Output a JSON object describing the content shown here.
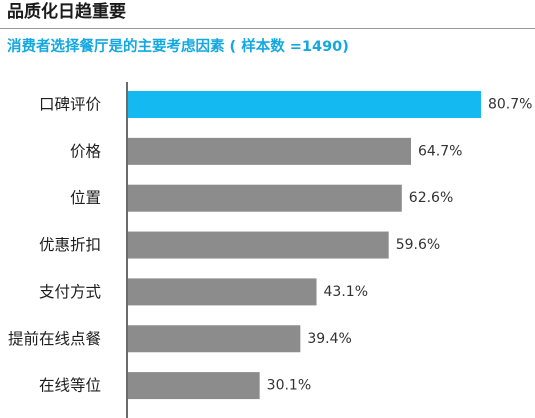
{
  "header": {
    "title": "品质化日趋重要"
  },
  "colors": {
    "accent": "#14A8E0",
    "highlight_bar": "#13B9F0",
    "bar": "#8C8C8C",
    "axis": "#3a3a3a"
  },
  "chart_data": {
    "type": "bar",
    "orientation": "horizontal",
    "title": "消费者选择餐厅是的主要考虑因素 ( 样本数 =1490)",
    "categories": [
      "口碑评价",
      "价格",
      "位置",
      "优惠折扣",
      "支付方式",
      "提前在线点餐",
      "在线等位"
    ],
    "values": [
      80.7,
      64.7,
      62.6,
      59.6,
      43.1,
      39.4,
      30.1
    ],
    "unit": "%",
    "highlight_index": 0,
    "xlabel": "",
    "ylabel": "",
    "grid": false,
    "legend": "none"
  }
}
